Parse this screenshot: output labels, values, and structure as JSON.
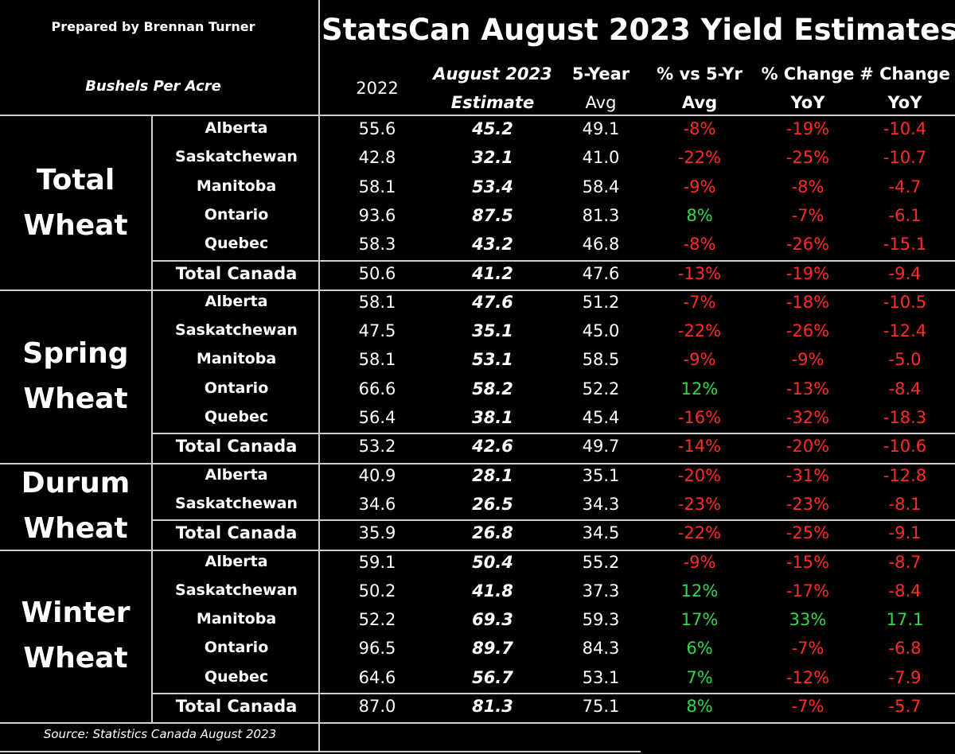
{
  "header": {
    "prepared_by": "Prepared by Brennan Turner",
    "units": "Bushels Per Acre",
    "title": "StatsCan August 2023 Yield Estimates",
    "columns": [
      {
        "line1": "2022",
        "line2": ""
      },
      {
        "line1": "August 2023",
        "line2": "Estimate"
      },
      {
        "line1": "5-Year",
        "line2": "Avg"
      },
      {
        "line1": "% vs 5-Yr",
        "line2": "Avg"
      },
      {
        "line1": "% Change",
        "line2": "YoY"
      },
      {
        "line1": "# Change",
        "line2": "YoY"
      }
    ]
  },
  "footer": {
    "source": "Source: Statistics Canada August 2023"
  },
  "colors": {
    "negative": "#ff2b2b",
    "positive": "#2fd84a",
    "background": "#000000",
    "text": "#ffffff"
  },
  "chart_data": {
    "type": "table",
    "title": "StatsCan August 2023 Yield Estimates",
    "units": "Bushels Per Acre",
    "groups": [
      {
        "name": [
          "Total",
          "Wheat"
        ],
        "rows": [
          {
            "region": "Alberta",
            "y2022": "55.6",
            "est": "45.2",
            "avg5": "49.1",
            "pct5": "-8%",
            "pctyoy": "-19%",
            "numyoy": "-10.4"
          },
          {
            "region": "Saskatchewan",
            "y2022": "42.8",
            "est": "32.1",
            "avg5": "41.0",
            "pct5": "-22%",
            "pctyoy": "-25%",
            "numyoy": "-10.7"
          },
          {
            "region": "Manitoba",
            "y2022": "58.1",
            "est": "53.4",
            "avg5": "58.4",
            "pct5": "-9%",
            "pctyoy": "-8%",
            "numyoy": "-4.7"
          },
          {
            "region": "Ontario",
            "y2022": "93.6",
            "est": "87.5",
            "avg5": "81.3",
            "pct5": "8%",
            "pctyoy": "-7%",
            "numyoy": "-6.1"
          },
          {
            "region": "Quebec",
            "y2022": "58.3",
            "est": "43.2",
            "avg5": "46.8",
            "pct5": "-8%",
            "pctyoy": "-26%",
            "numyoy": "-15.1"
          },
          {
            "region": "Total Canada",
            "y2022": "50.6",
            "est": "41.2",
            "avg5": "47.6",
            "pct5": "-13%",
            "pctyoy": "-19%",
            "numyoy": "-9.4",
            "total": true
          }
        ]
      },
      {
        "name": [
          "Spring",
          "Wheat"
        ],
        "rows": [
          {
            "region": "Alberta",
            "y2022": "58.1",
            "est": "47.6",
            "avg5": "51.2",
            "pct5": "-7%",
            "pctyoy": "-18%",
            "numyoy": "-10.5"
          },
          {
            "region": "Saskatchewan",
            "y2022": "47.5",
            "est": "35.1",
            "avg5": "45.0",
            "pct5": "-22%",
            "pctyoy": "-26%",
            "numyoy": "-12.4"
          },
          {
            "region": "Manitoba",
            "y2022": "58.1",
            "est": "53.1",
            "avg5": "58.5",
            "pct5": "-9%",
            "pctyoy": "-9%",
            "numyoy": "-5.0"
          },
          {
            "region": "Ontario",
            "y2022": "66.6",
            "est": "58.2",
            "avg5": "52.2",
            "pct5": "12%",
            "pctyoy": "-13%",
            "numyoy": "-8.4"
          },
          {
            "region": "Quebec",
            "y2022": "56.4",
            "est": "38.1",
            "avg5": "45.4",
            "pct5": "-16%",
            "pctyoy": "-32%",
            "numyoy": "-18.3"
          },
          {
            "region": "Total Canada",
            "y2022": "53.2",
            "est": "42.6",
            "avg5": "49.7",
            "pct5": "-14%",
            "pctyoy": "-20%",
            "numyoy": "-10.6",
            "total": true
          }
        ]
      },
      {
        "name": [
          "Durum",
          "Wheat"
        ],
        "rows": [
          {
            "region": "Alberta",
            "y2022": "40.9",
            "est": "28.1",
            "avg5": "35.1",
            "pct5": "-20%",
            "pctyoy": "-31%",
            "numyoy": "-12.8"
          },
          {
            "region": "Saskatchewan",
            "y2022": "34.6",
            "est": "26.5",
            "avg5": "34.3",
            "pct5": "-23%",
            "pctyoy": "-23%",
            "numyoy": "-8.1"
          },
          {
            "region": "Total Canada",
            "y2022": "35.9",
            "est": "26.8",
            "avg5": "34.5",
            "pct5": "-22%",
            "pctyoy": "-25%",
            "numyoy": "-9.1",
            "total": true
          }
        ]
      },
      {
        "name": [
          "Winter",
          "Wheat"
        ],
        "rows": [
          {
            "region": "Alberta",
            "y2022": "59.1",
            "est": "50.4",
            "avg5": "55.2",
            "pct5": "-9%",
            "pctyoy": "-15%",
            "numyoy": "-8.7"
          },
          {
            "region": "Saskatchewan",
            "y2022": "50.2",
            "est": "41.8",
            "avg5": "37.3",
            "pct5": "12%",
            "pctyoy": "-17%",
            "numyoy": "-8.4"
          },
          {
            "region": "Manitoba",
            "y2022": "52.2",
            "est": "69.3",
            "avg5": "59.3",
            "pct5": "17%",
            "pctyoy": "33%",
            "numyoy": "17.1"
          },
          {
            "region": "Ontario",
            "y2022": "96.5",
            "est": "89.7",
            "avg5": "84.3",
            "pct5": "6%",
            "pctyoy": "-7%",
            "numyoy": "-6.8"
          },
          {
            "region": "Quebec",
            "y2022": "64.6",
            "est": "56.7",
            "avg5": "53.1",
            "pct5": "7%",
            "pctyoy": "-12%",
            "numyoy": "-7.9"
          },
          {
            "region": "Total Canada",
            "y2022": "87.0",
            "est": "81.3",
            "avg5": "75.1",
            "pct5": "8%",
            "pctyoy": "-7%",
            "numyoy": "-5.7",
            "total": true
          }
        ]
      }
    ]
  }
}
